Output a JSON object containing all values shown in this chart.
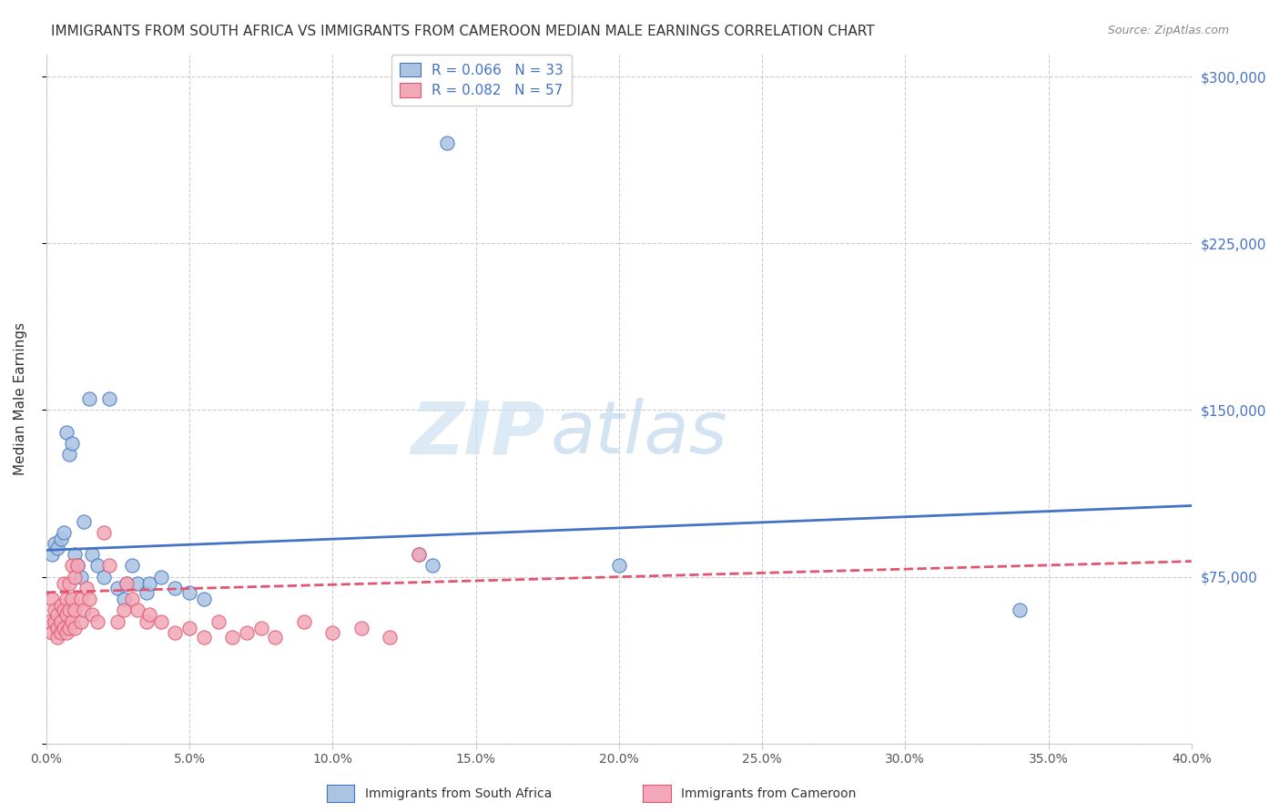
{
  "title": "IMMIGRANTS FROM SOUTH AFRICA VS IMMIGRANTS FROM CAMEROON MEDIAN MALE EARNINGS CORRELATION CHART",
  "source": "Source: ZipAtlas.com",
  "ylabel": "Median Male Earnings",
  "right_axis_labels": [
    "$300,000",
    "$225,000",
    "$150,000",
    "$75,000",
    ""
  ],
  "legend_label1": "R = 0.066   N = 33",
  "legend_label2": "R = 0.082   N = 57",
  "legend_bottom1": "Immigrants from South Africa",
  "legend_bottom2": "Immigrants from Cameroon",
  "color_blue": "#aac4e2",
  "color_pink": "#f2a8b8",
  "line_blue": "#4472c4",
  "line_pink": "#e05570",
  "text_blue": "#4472c4",
  "watermark_zip": "ZIP",
  "watermark_atlas": "atlas",
  "blue_points": [
    [
      0.002,
      85000
    ],
    [
      0.003,
      90000
    ],
    [
      0.004,
      88000
    ],
    [
      0.005,
      92000
    ],
    [
      0.006,
      95000
    ],
    [
      0.007,
      140000
    ],
    [
      0.008,
      130000
    ],
    [
      0.009,
      135000
    ],
    [
      0.01,
      85000
    ],
    [
      0.011,
      80000
    ],
    [
      0.012,
      75000
    ],
    [
      0.013,
      100000
    ],
    [
      0.015,
      155000
    ],
    [
      0.016,
      85000
    ],
    [
      0.018,
      80000
    ],
    [
      0.02,
      75000
    ],
    [
      0.022,
      155000
    ],
    [
      0.025,
      70000
    ],
    [
      0.027,
      65000
    ],
    [
      0.028,
      72000
    ],
    [
      0.03,
      80000
    ],
    [
      0.032,
      72000
    ],
    [
      0.035,
      68000
    ],
    [
      0.036,
      72000
    ],
    [
      0.04,
      75000
    ],
    [
      0.045,
      70000
    ],
    [
      0.05,
      68000
    ],
    [
      0.055,
      65000
    ],
    [
      0.13,
      85000
    ],
    [
      0.135,
      80000
    ],
    [
      0.14,
      270000
    ],
    [
      0.2,
      80000
    ],
    [
      0.34,
      60000
    ]
  ],
  "pink_points": [
    [
      0.001,
      55000
    ],
    [
      0.002,
      50000
    ],
    [
      0.002,
      65000
    ],
    [
      0.003,
      60000
    ],
    [
      0.003,
      55000
    ],
    [
      0.004,
      58000
    ],
    [
      0.004,
      52000
    ],
    [
      0.004,
      48000
    ],
    [
      0.005,
      62000
    ],
    [
      0.005,
      55000
    ],
    [
      0.005,
      50000
    ],
    [
      0.006,
      72000
    ],
    [
      0.006,
      60000
    ],
    [
      0.006,
      52000
    ],
    [
      0.007,
      65000
    ],
    [
      0.007,
      58000
    ],
    [
      0.007,
      50000
    ],
    [
      0.008,
      72000
    ],
    [
      0.008,
      60000
    ],
    [
      0.008,
      52000
    ],
    [
      0.009,
      80000
    ],
    [
      0.009,
      65000
    ],
    [
      0.009,
      55000
    ],
    [
      0.01,
      75000
    ],
    [
      0.01,
      60000
    ],
    [
      0.01,
      52000
    ],
    [
      0.011,
      80000
    ],
    [
      0.012,
      65000
    ],
    [
      0.012,
      55000
    ],
    [
      0.013,
      60000
    ],
    [
      0.014,
      70000
    ],
    [
      0.015,
      65000
    ],
    [
      0.016,
      58000
    ],
    [
      0.018,
      55000
    ],
    [
      0.02,
      95000
    ],
    [
      0.022,
      80000
    ],
    [
      0.025,
      55000
    ],
    [
      0.027,
      60000
    ],
    [
      0.028,
      72000
    ],
    [
      0.03,
      65000
    ],
    [
      0.032,
      60000
    ],
    [
      0.035,
      55000
    ],
    [
      0.036,
      58000
    ],
    [
      0.04,
      55000
    ],
    [
      0.045,
      50000
    ],
    [
      0.05,
      52000
    ],
    [
      0.055,
      48000
    ],
    [
      0.06,
      55000
    ],
    [
      0.065,
      48000
    ],
    [
      0.07,
      50000
    ],
    [
      0.075,
      52000
    ],
    [
      0.08,
      48000
    ],
    [
      0.09,
      55000
    ],
    [
      0.1,
      50000
    ],
    [
      0.11,
      52000
    ],
    [
      0.12,
      48000
    ],
    [
      0.13,
      85000
    ]
  ],
  "xlim": [
    0.0,
    0.4
  ],
  "ylim": [
    0,
    310000
  ],
  "xticks": [
    0.0,
    0.05,
    0.1,
    0.15,
    0.2,
    0.25,
    0.3,
    0.35,
    0.4
  ],
  "yticks": [
    0,
    75000,
    150000,
    225000,
    300000
  ],
  "blue_line_x": [
    0.0,
    0.4
  ],
  "blue_line_y": [
    87000,
    107000
  ],
  "pink_line_x": [
    0.0,
    0.4
  ],
  "pink_line_y": [
    68000,
    82000
  ],
  "grid_color": "#cccccc",
  "background_color": "#ffffff"
}
